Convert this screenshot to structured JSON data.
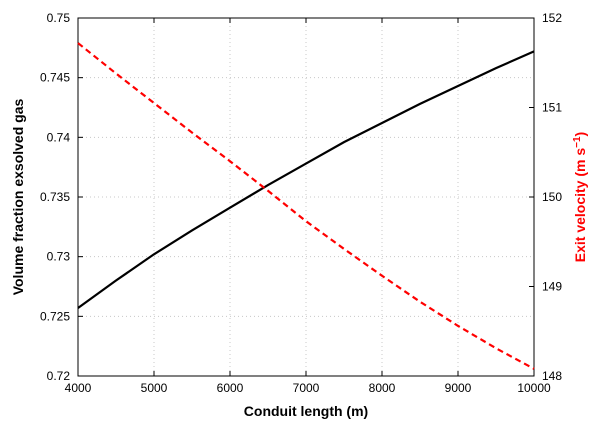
{
  "chart_data": {
    "type": "line",
    "title": "",
    "xlabel": "Conduit length (m)",
    "ylabel_left": "Volume fraction exsolved gas",
    "ylabel_right": "Exit velocity (m s",
    "ylabel_right_unit_exponent": "−1",
    "ylabel_right_close": ")",
    "xlim": [
      4000,
      10000
    ],
    "ylim_left": [
      0.72,
      0.75
    ],
    "ylim_right": [
      148,
      152
    ],
    "x_ticks": [
      4000,
      5000,
      6000,
      7000,
      8000,
      9000,
      10000
    ],
    "x_tick_labels": [
      "4000",
      "5000",
      "6000",
      "7000",
      "8000",
      "9000",
      "10000"
    ],
    "y_left_ticks": [
      0.72,
      0.725,
      0.73,
      0.735,
      0.74,
      0.745,
      0.75
    ],
    "y_left_tick_labels": [
      "0.72",
      "0.725",
      "0.73",
      "0.735",
      "0.74",
      "0.745",
      "0.75"
    ],
    "y_right_ticks": [
      148,
      149,
      150,
      151,
      152
    ],
    "y_right_tick_labels": [
      "148",
      "149",
      "150",
      "151",
      "152"
    ],
    "grid": true,
    "colors": {
      "left_series": "#000000",
      "right_series": "#ff0000",
      "right_axis_label": "#ff0000",
      "grid": "#c8c8c8"
    },
    "series": [
      {
        "axis": "left",
        "style": "solid",
        "color": "#000000",
        "x": [
          4000,
          4500,
          5000,
          5500,
          6000,
          6500,
          7000,
          7500,
          8000,
          8500,
          9000,
          9500,
          10000
        ],
        "y": [
          0.7257,
          0.728,
          0.7302,
          0.7322,
          0.7341,
          0.736,
          0.7378,
          0.7396,
          0.7412,
          0.7428,
          0.7443,
          0.7458,
          0.7472
        ]
      },
      {
        "axis": "right",
        "style": "dashed",
        "color": "#ff0000",
        "x": [
          4000,
          4500,
          5000,
          5500,
          6000,
          6500,
          7000,
          7500,
          8000,
          8500,
          9000,
          9500,
          10000
        ],
        "y": [
          151.72,
          151.38,
          151.05,
          150.72,
          150.4,
          150.07,
          149.73,
          149.42,
          149.12,
          148.83,
          148.56,
          148.31,
          148.08
        ]
      }
    ]
  }
}
